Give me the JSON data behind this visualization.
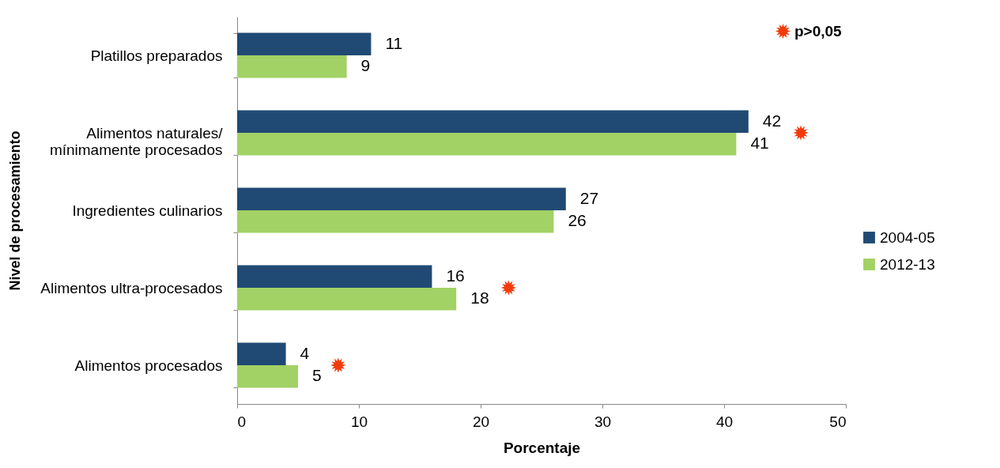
{
  "chart_data": {
    "type": "bar",
    "orientation": "horizontal",
    "xlabel": "Porcentaje",
    "ylabel": "Nivel de procesamiento",
    "categories": [
      "Platillos preparados",
      "Alimentos naturales/\nmínimamente procesados",
      "Ingredientes culinarios",
      "Alimentos ultra-procesados",
      "Alimentos procesados"
    ],
    "series": [
      {
        "name": "2004-05",
        "color": "#204a74",
        "values": [
          11,
          42,
          27,
          16,
          4
        ]
      },
      {
        "name": "2012-13",
        "color": "#a2d165",
        "values": [
          9,
          41,
          26,
          18,
          5
        ]
      },
      {
        "name": "p>0,05",
        "type": "scatter",
        "marker": "star",
        "color": "#f03c0c",
        "x": [
          "Alimentos naturales/\nmínimamente procesados",
          "Alimentos ultra-procesados",
          "Alimentos procesados"
        ],
        "values": [
          46.3,
          22.3,
          8.3
        ],
        "value_labels": [
          null,
          null,
          null
        ]
      }
    ],
    "xlim": [
      0,
      50
    ],
    "xticks": [
      0,
      10,
      20,
      30,
      40,
      50
    ],
    "data_labels": true,
    "grid": false,
    "legend": "right"
  }
}
